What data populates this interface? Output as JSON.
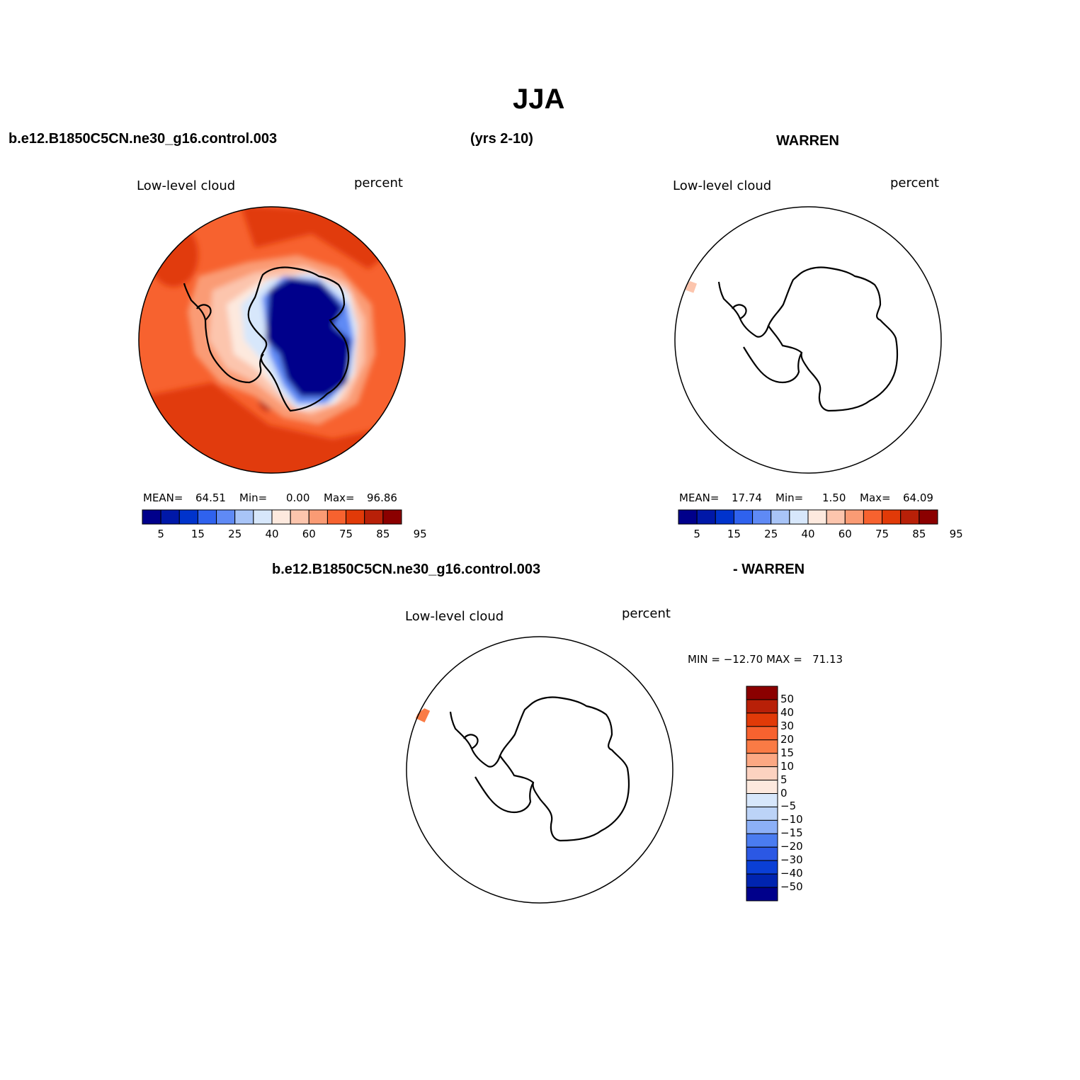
{
  "figure": {
    "title": "JJA",
    "case_name": "b.e12.B1850C5CN.ne30_g16.control.003",
    "years": "(yrs 2-10)",
    "obs_name": "WARREN",
    "diff_case_name": "b.e12.B1850C5CN.ne30_g16.control.003",
    "diff_obs_name": "- WARREN"
  },
  "panels": {
    "model": {
      "variable": "Low-level cloud",
      "units": "percent",
      "mean_label": "MEAN=",
      "mean": "64.51",
      "min_label": "Min=",
      "min": "0.00",
      "max_label": "Max=",
      "max": "96.86"
    },
    "obs": {
      "variable": "Low-level cloud",
      "units": "percent",
      "mean_label": "MEAN=",
      "mean": "17.74",
      "min_label": "Min=",
      "min": "1.50",
      "max_label": "Max=",
      "max": "64.09"
    },
    "diff": {
      "variable": "Low-level cloud",
      "units": "percent",
      "minmax_text": "MIN = −12.70 MAX =   71.13"
    }
  },
  "colorbars": {
    "abs_colors": [
      "#00008b",
      "#0018a8",
      "#0033cc",
      "#2f62ee",
      "#5f8af5",
      "#a8c4f7",
      "#d7e7fb",
      "#fde9de",
      "#fcc5ad",
      "#fa9b74",
      "#f7622f",
      "#e13a08",
      "#b82008",
      "#8b0000"
    ],
    "abs_labels": [
      "5",
      "15",
      "25",
      "40",
      "60",
      "75",
      "85",
      "95"
    ],
    "diff_colors": [
      "#8b0000",
      "#b82008",
      "#e13a08",
      "#f7622f",
      "#fa7b45",
      "#fca883",
      "#fcd2c0",
      "#fde9de",
      "#d7e7fb",
      "#bcd3f7",
      "#8cb0f7",
      "#4a7cf0",
      "#2b58e4",
      "#0a3fd6",
      "#0024b0",
      "#00008b"
    ],
    "diff_labels": [
      "50",
      "40",
      "30",
      "20",
      "15",
      "10",
      "5",
      "0",
      "−5",
      "−10",
      "−15",
      "−20",
      "−30",
      "−40",
      "−50"
    ]
  },
  "chart_data": [
    {
      "type": "map",
      "projection": "south polar stereographic",
      "title": "Low-level cloud",
      "units": "percent",
      "field": "model low-level cloud fraction, JJA",
      "stats": {
        "mean": 64.51,
        "min": 0.0,
        "max": 96.86
      },
      "levels": [
        5,
        10,
        15,
        20,
        25,
        30,
        40,
        50,
        60,
        70,
        75,
        80,
        85,
        90,
        95
      ],
      "pattern": "high (75-95) over Southern Ocean, near 0-5 over East Antarctic interior"
    },
    {
      "type": "map",
      "projection": "south polar stereographic",
      "title": "Low-level cloud",
      "units": "percent",
      "field": "WARREN observations, JJA",
      "stats": {
        "mean": 17.74,
        "min": 1.5,
        "max": 64.09
      },
      "levels": [
        5,
        10,
        15,
        20,
        25,
        30,
        40,
        50,
        60,
        70,
        75,
        80,
        85,
        90,
        95
      ]
    },
    {
      "type": "map",
      "projection": "south polar stereographic",
      "title": "Low-level cloud",
      "units": "percent",
      "field": "model - WARREN difference, JJA",
      "stats": {
        "min": -12.7,
        "max": 71.13
      },
      "levels": [
        -50,
        -40,
        -30,
        -20,
        -15,
        -10,
        -5,
        0,
        5,
        10,
        15,
        20,
        30,
        40,
        50
      ]
    }
  ]
}
